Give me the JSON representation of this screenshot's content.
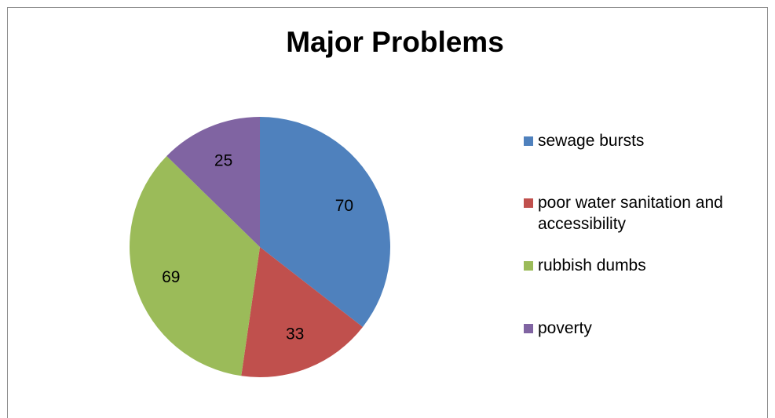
{
  "chart_data": {
    "type": "pie",
    "title": "Major Problems",
    "categories": [
      "sewage bursts",
      "poor water sanitation and accessibility",
      "rubbish dumbs",
      "poverty"
    ],
    "values": [
      70,
      33,
      69,
      25
    ],
    "colors": [
      "#4f81bd",
      "#c0504d",
      "#9bbb59",
      "#8064a2"
    ],
    "data_labels": [
      "70",
      "33",
      "69",
      "25"
    ],
    "legend_position": "right",
    "start_angle_deg": 0,
    "direction": "clockwise"
  }
}
